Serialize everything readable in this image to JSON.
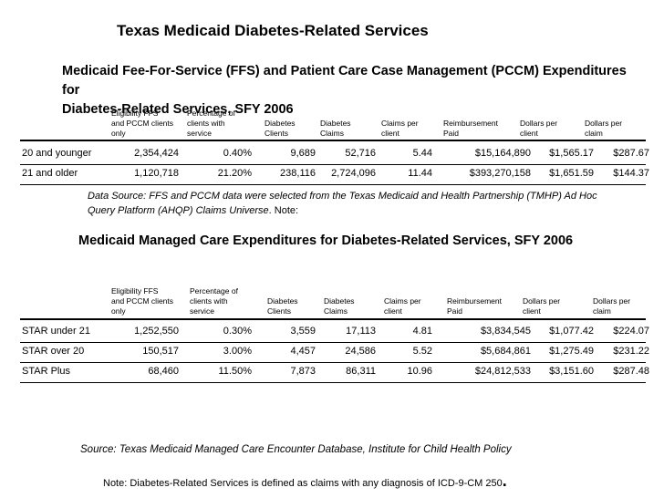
{
  "title": "Texas Medicaid Diabetes-Related Services",
  "ffs": {
    "title_line1": "Medicaid Fee-For-Service (FFS) and Patient Care Case Management (PCCM) Expenditures for",
    "title_line2": "Diabetes-Related Services, SFY 2006",
    "headers": [
      [
        "Eligibility FFS",
        "and PCCM clients",
        "only"
      ],
      [
        "Percentage of",
        "clients with",
        "service"
      ],
      [
        "Diabetes",
        "Clients"
      ],
      [
        "Diabetes",
        "Claims"
      ],
      [
        "Claims per",
        "client"
      ],
      [
        "Reimbursement",
        "Paid"
      ],
      [
        "Dollars per",
        "client"
      ],
      [
        "Dollars per",
        "claim"
      ]
    ],
    "rows": [
      [
        "20 and younger",
        "2,354,424",
        "0.40%",
        "9,689",
        "52,716",
        "5.44",
        "$15,164,890",
        "$1,565.17",
        "$287.67"
      ],
      [
        "21 and older",
        "1,120,718",
        "21.20%",
        "238,116",
        "2,724,096",
        "11.44",
        "$393,270,158",
        "$1,651.59",
        "$144.37"
      ]
    ],
    "note_italic_1": "Data Source: FFS and PCCM data were selected from the Texas Medicaid and Health Partnership (TMHP) Ad Hoc",
    "note_italic_2": "Query Platform (AHQP) Claims Universe",
    "note_tail": ". Note:"
  },
  "mc": {
    "title": "Medicaid Managed Care Expenditures for Diabetes-Related Services, SFY 2006",
    "headers": [
      [
        "Eligibility FFS",
        "and PCCM clients",
        "only"
      ],
      [
        "Percentage of",
        "clients with",
        "service"
      ],
      [
        "Diabetes",
        "Clients"
      ],
      [
        "Diabetes",
        "Claims"
      ],
      [
        "Claims per",
        "client"
      ],
      [
        "Reimbursement",
        "Paid"
      ],
      [
        "Dollars per",
        "client"
      ],
      [
        "Dollars per",
        "claim"
      ]
    ],
    "rows": [
      [
        "STAR under 21",
        "1,252,550",
        "0.30%",
        "3,559",
        "17,113",
        "4.81",
        "$3,834,545",
        "$1,077.42",
        "$224.07"
      ],
      [
        "STAR over 20",
        "150,517",
        "3.00%",
        "4,457",
        "24,586",
        "5.52",
        "$5,684,861",
        "$1,275.49",
        "$231.22"
      ],
      [
        "STAR Plus",
        "68,460",
        "11.50%",
        "7,873",
        "86,311",
        "10.96",
        "$24,812,533",
        "$3,151.60",
        "$287.48"
      ]
    ],
    "source": "Source: Texas Medicaid Managed Care Encounter Database, Institute for Child Health Policy"
  },
  "footnote": "Note: Diabetes-Related Services is defined as claims with any diagnosis of ICD-9-CM 250",
  "footnote_end": "."
}
